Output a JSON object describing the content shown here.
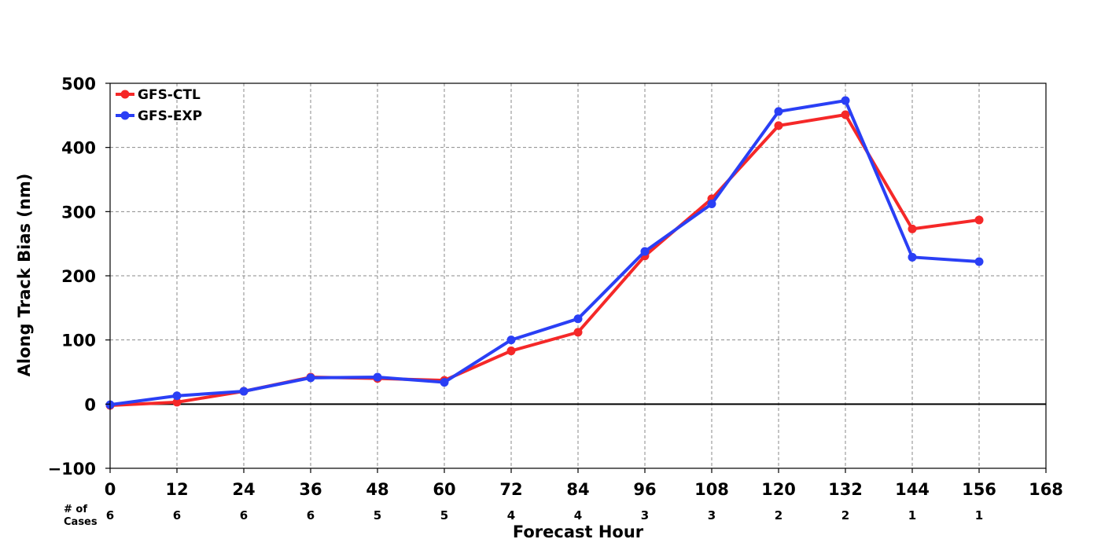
{
  "chart_data": {
    "type": "line",
    "title": "",
    "xlabel": "Forecast Hour",
    "ylabel": "Along Track Bias (nm)",
    "xlim": [
      0,
      168
    ],
    "ylim": [
      -100,
      500
    ],
    "x_ticks": [
      0,
      12,
      24,
      36,
      48,
      60,
      72,
      84,
      96,
      108,
      120,
      132,
      144,
      156,
      168
    ],
    "x_tick_labels": [
      "0",
      "12",
      "24",
      "36",
      "48",
      "60",
      "72",
      "84",
      "96",
      "108",
      "120",
      "132",
      "144",
      "156",
      "168"
    ],
    "y_ticks": [
      -100,
      0,
      100,
      200,
      300,
      400,
      500
    ],
    "y_tick_labels": [
      "−100",
      "0",
      "100",
      "200",
      "300",
      "400",
      "500"
    ],
    "grid": true,
    "legend_position": "top-left",
    "x": [
      0,
      12,
      24,
      36,
      48,
      60,
      72,
      84,
      96,
      108,
      120,
      132,
      144,
      156
    ],
    "series": [
      {
        "name": "GFS-CTL",
        "color": "#f52828",
        "values": [
          -2,
          3,
          20,
          42,
          40,
          37,
          83,
          112,
          231,
          320,
          434,
          451,
          273,
          287
        ]
      },
      {
        "name": "GFS-EXP",
        "color": "#2a3ff5",
        "values": [
          -1,
          13,
          20,
          41,
          42,
          34,
          100,
          133,
          238,
          312,
          456,
          473,
          229,
          222
        ]
      }
    ],
    "cases_header": "# of\nCases",
    "cases_header_lines": [
      "# of",
      "Cases"
    ],
    "cases": [
      "6",
      "6",
      "6",
      "6",
      "5",
      "5",
      "4",
      "4",
      "3",
      "3",
      "2",
      "2",
      "1",
      "1"
    ]
  }
}
